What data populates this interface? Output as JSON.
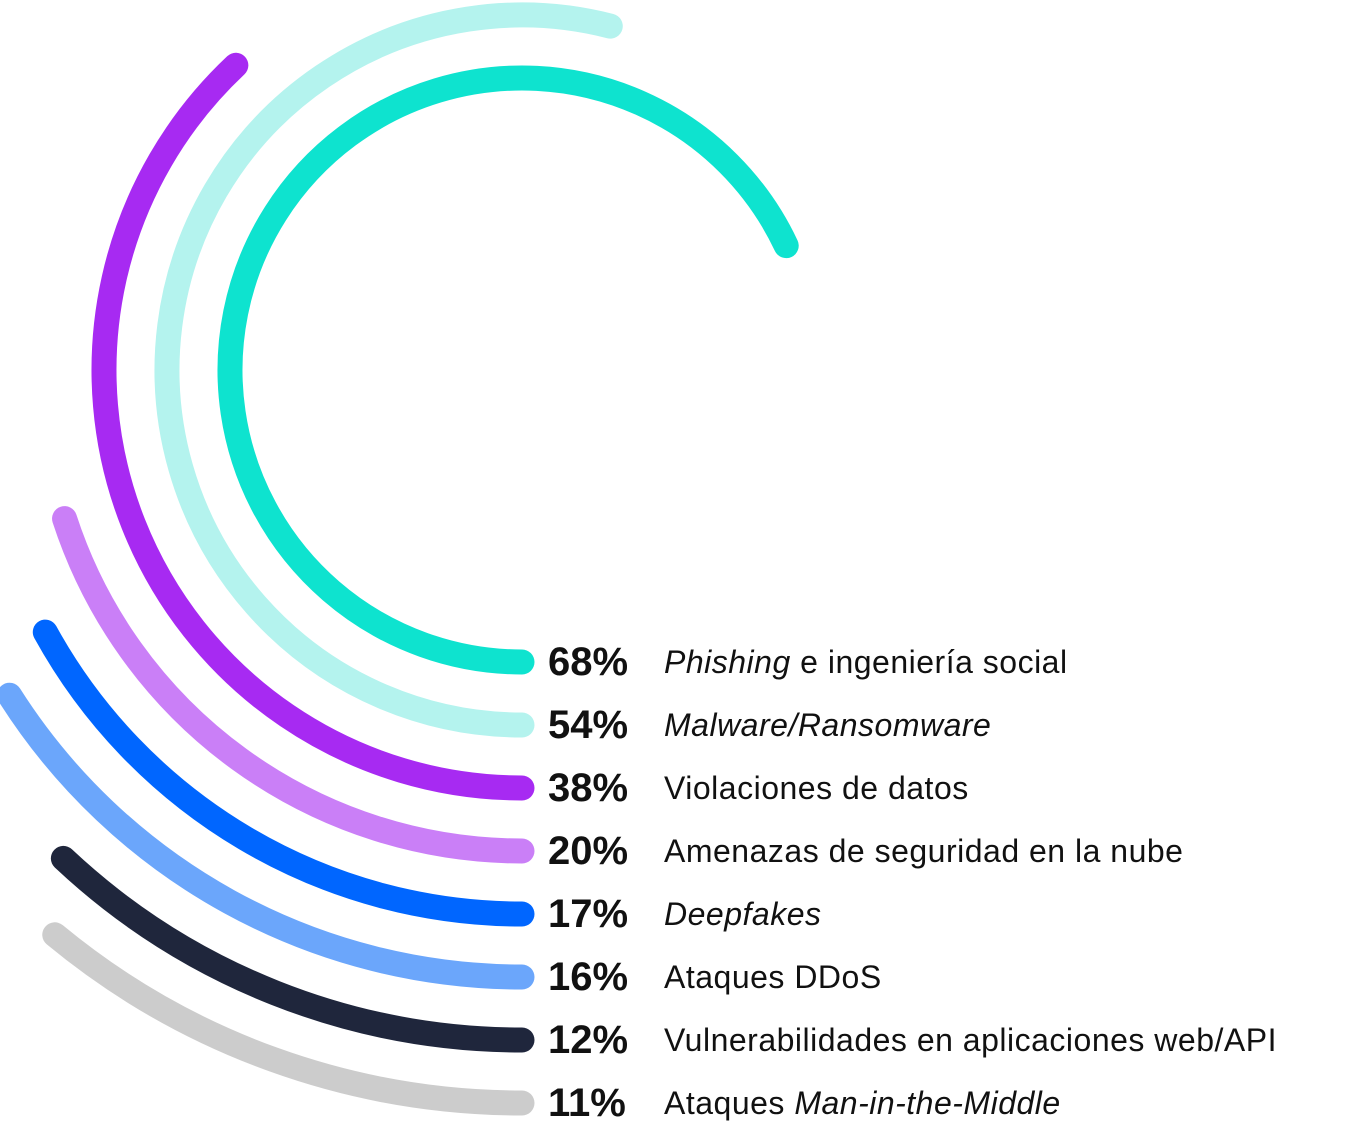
{
  "chart_data": {
    "type": "radial-bar",
    "max_percent": 100,
    "items": [
      {
        "value": 68,
        "value_label": "68%",
        "label": [
          {
            "text": "Phishing",
            "italic": true
          },
          {
            "text": " e ingeniería social",
            "italic": false
          }
        ],
        "color": "#0ee3cf"
      },
      {
        "value": 54,
        "value_label": "54%",
        "label": [
          {
            "text": "Malware/Ransomware",
            "italic": true
          }
        ],
        "color": "#b4f3ee"
      },
      {
        "value": 38,
        "value_label": "38%",
        "label": [
          {
            "text": "Violaciones de datos",
            "italic": false
          }
        ],
        "color": "#a72af2"
      },
      {
        "value": 20,
        "value_label": "20%",
        "label": [
          {
            "text": "Amenazas de seguridad en la nube",
            "italic": false
          }
        ],
        "color": "#ca7ff7"
      },
      {
        "value": 17,
        "value_label": "17%",
        "label": [
          {
            "text": "Deepfakes",
            "italic": true
          }
        ],
        "color": "#0066ff"
      },
      {
        "value": 16,
        "value_label": "16%",
        "label": [
          {
            "text": "Ataques DDoS",
            "italic": false
          }
        ],
        "color": "#6ba6fb"
      },
      {
        "value": 12,
        "value_label": "12%",
        "label": [
          {
            "text": "Vulnerabilidades en aplicaciones web/API",
            "italic": false
          }
        ],
        "color": "#1f263c"
      },
      {
        "value": 11,
        "value_label": "11%",
        "label": [
          {
            "text": "Ataques ",
            "italic": false
          },
          {
            "text": "Man-in-the-Middle",
            "italic": true
          }
        ],
        "color": "#cccccc"
      }
    ]
  }
}
